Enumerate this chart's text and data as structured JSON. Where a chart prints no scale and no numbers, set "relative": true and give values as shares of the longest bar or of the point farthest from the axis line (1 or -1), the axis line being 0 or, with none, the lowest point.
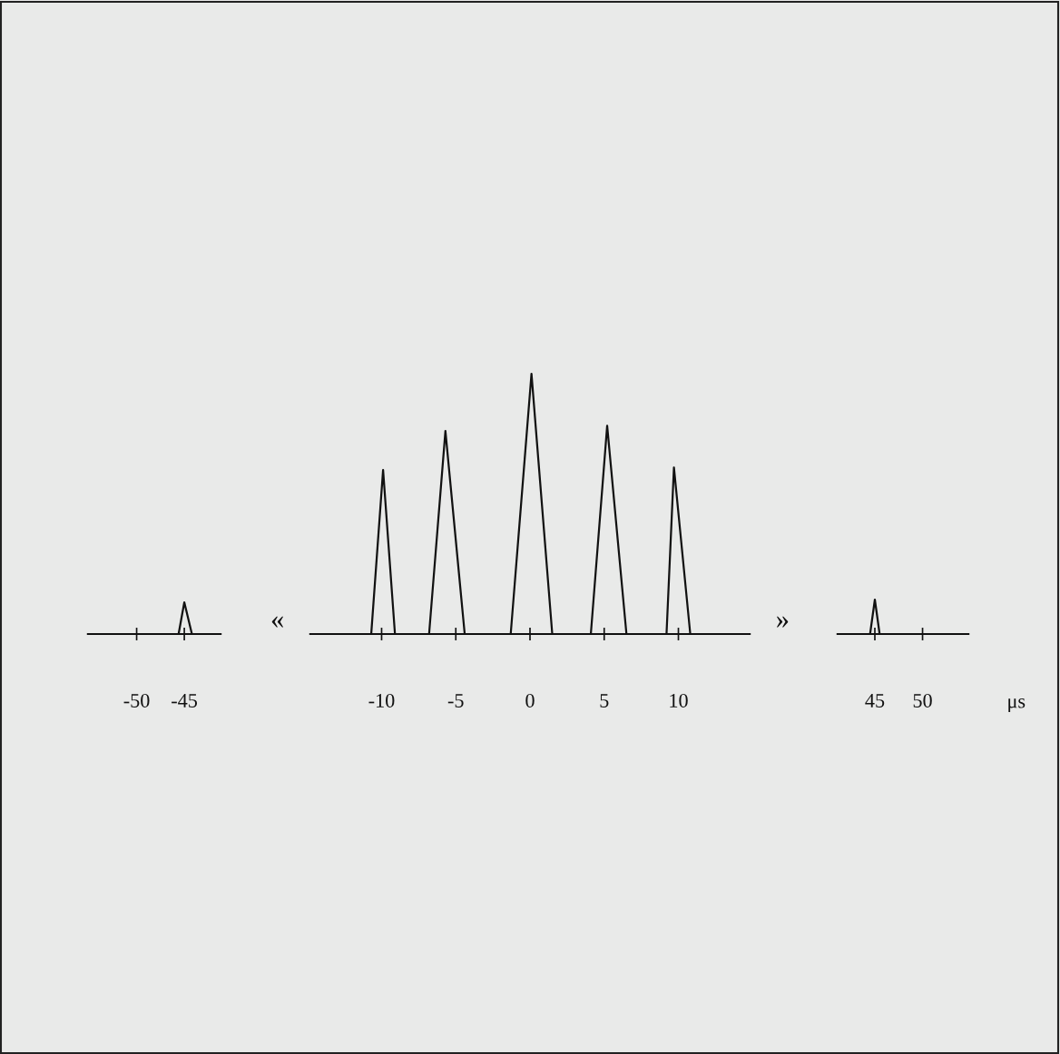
{
  "chart_data": [
    {
      "type": "line",
      "relative": true,
      "xlim": [
        -55.1,
        -41.2
      ],
      "xticks": [
        -50,
        -45
      ],
      "marker": "none",
      "line_style": "solid",
      "grid": false,
      "legend": false,
      "series": [
        {
          "color": "#111111",
          "x": [
            -55.1,
            -45.6,
            -45.0,
            -44.2,
            -41.2
          ],
          "values": [
            0,
            0,
            1,
            0,
            0
          ]
        }
      ]
    },
    {
      "type": "line",
      "relative": true,
      "xlim": [
        -14.8,
        14.8
      ],
      "xticks": [
        -10,
        -5,
        0,
        5,
        10
      ],
      "marker": "none",
      "line_style": "solid",
      "grid": false,
      "legend": false,
      "annotations": [
        "«",
        "»"
      ],
      "series": [
        {
          "color": "#111111",
          "x": [
            -14.8,
            -10.7,
            -9.9,
            -9.1,
            -6.8,
            -5.7,
            -4.4,
            -1.3,
            0.1,
            1.5,
            4.1,
            5.2,
            6.5,
            9.2,
            9.7,
            10.8,
            14.8
          ],
          "values": [
            0,
            0,
            0.63,
            0,
            0,
            0.78,
            0,
            0,
            1,
            0,
            0,
            0.8,
            0,
            0,
            0.64,
            0,
            0
          ]
        }
      ]
    },
    {
      "type": "line",
      "relative": true,
      "xlim": [
        41.1,
        54.8
      ],
      "xticks": [
        45,
        50
      ],
      "xlabel": "μs",
      "marker": "none",
      "line_style": "solid",
      "grid": false,
      "legend": false,
      "series": [
        {
          "color": "#111111",
          "x": [
            41.1,
            44.5,
            45.0,
            45.5,
            54.8
          ],
          "values": [
            0,
            0,
            1,
            0,
            0
          ]
        }
      ]
    }
  ]
}
